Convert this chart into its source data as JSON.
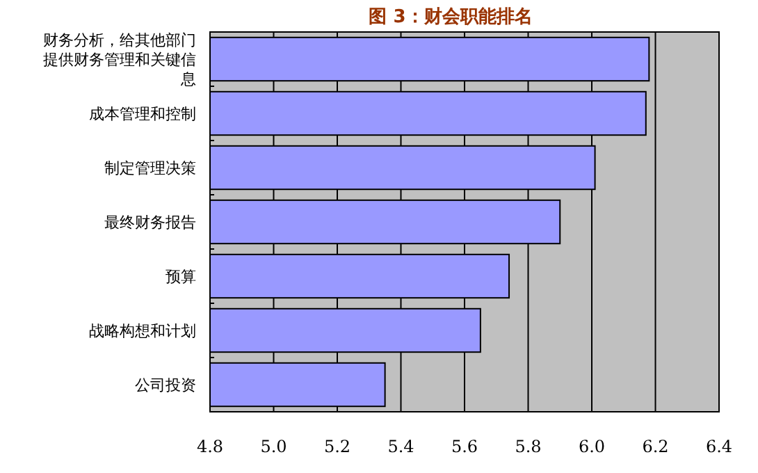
{
  "chart_data": {
    "type": "bar",
    "orientation": "horizontal",
    "title": "图 3：财会职能排名",
    "categories": [
      "财务分析，给其他部门提供财务管理和关键信息",
      "成本管理和控制",
      "制定管理决策",
      "最终财务报告",
      "预算",
      "战略构想和计划",
      "公司投资"
    ],
    "values": [
      6.18,
      6.17,
      6.01,
      5.9,
      5.74,
      5.65,
      5.35
    ],
    "color": "#9999ff",
    "xlim": [
      4.8,
      6.4
    ],
    "xticks": [
      {
        "value": 4.8,
        "label": "4.8"
      },
      {
        "value": 5.0,
        "label": "5.0"
      },
      {
        "value": 5.2,
        "label": "5.2"
      },
      {
        "value": 5.4,
        "label": "5.4"
      },
      {
        "value": 5.6,
        "label": "5.6"
      },
      {
        "value": 5.8,
        "label": "5.8"
      },
      {
        "value": 6.0,
        "label": "6.0"
      },
      {
        "value": 6.2,
        "label": "6.2"
      },
      {
        "value": 6.4,
        "label": "6.4"
      }
    ],
    "grid": "x"
  }
}
